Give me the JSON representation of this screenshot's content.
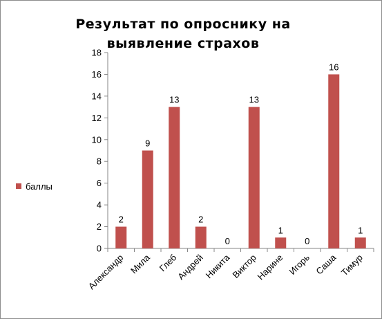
{
  "chart_data": {
    "type": "bar",
    "title": "Результат по опроснику на выявление страхов",
    "title_lines": [
      "Результат по опроснику на",
      "выявление страхов"
    ],
    "categories": [
      "Александр",
      "Мила",
      "Глеб",
      "Андрей",
      "Никита",
      "Виктор",
      "Нарине",
      "Игорь",
      "Саша",
      "Тимур"
    ],
    "series": [
      {
        "name": "баллы",
        "values": [
          2,
          9,
          13,
          2,
          0,
          13,
          1,
          0,
          16,
          1
        ],
        "color": "#c0504d"
      }
    ],
    "data_labels": true,
    "xlabel": "",
    "ylabel": "",
    "ylim": [
      0,
      18
    ],
    "yticks": [
      0,
      2,
      4,
      6,
      8,
      10,
      12,
      14,
      16,
      18
    ],
    "grid": false,
    "legend": "left"
  }
}
